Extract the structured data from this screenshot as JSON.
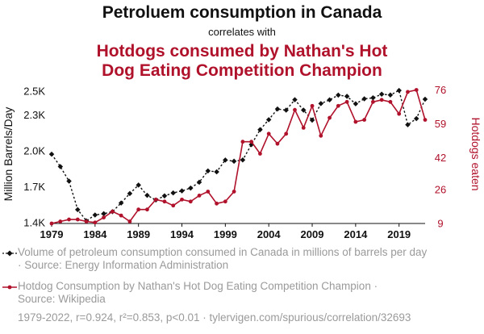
{
  "title": "Petroluem consumption in Canada",
  "subtitle": "correlates with",
  "title2_line1": "Hotdogs consumed by Nathan's Hot",
  "title2_line2": "Dog Eating Competition Champion",
  "legend": {
    "series1_line1": "Volume of petroleum consumption consumed in Canada in millions of barrels per day",
    "series1_line2": "· Source: Energy Information Administration",
    "series2_line1": "Hotdog Consumption by Nathan's Hot Dog Eating Competition Champion ·",
    "series2_line2": "Source: Wikipedia"
  },
  "footer": "1979-2022, r=0.924, r²=0.853, p<0.01 · tylervigen.com/spurious/correlation/32693",
  "colors": {
    "petroleum": "#111111",
    "hotdogs": "#b0112b"
  },
  "chart_data": {
    "type": "line",
    "x_label": "",
    "y_label_left": "Million Barrels/Day",
    "y_label_right": "Hotdogs eaten",
    "x": [
      1979,
      1980,
      1981,
      1982,
      1983,
      1984,
      1985,
      1986,
      1987,
      1988,
      1989,
      1990,
      1991,
      1992,
      1993,
      1994,
      1995,
      1996,
      1997,
      1998,
      1999,
      2000,
      2001,
      2002,
      2003,
      2004,
      2005,
      2006,
      2007,
      2008,
      2009,
      2010,
      2011,
      2012,
      2013,
      2014,
      2015,
      2016,
      2017,
      2018,
      2019,
      2020,
      2021,
      2022
    ],
    "x_ticks": [
      1979,
      1984,
      1989,
      1994,
      1999,
      2004,
      2009,
      2014,
      2019
    ],
    "left_ticks": [
      {
        "v": 1.4,
        "label": "1.4K"
      },
      {
        "v": 1.7,
        "label": "1.7K"
      },
      {
        "v": 2.0,
        "label": "2.0K"
      },
      {
        "v": 2.3,
        "label": "2.3K"
      },
      {
        "v": 2.5,
        "label": "2.5K"
      }
    ],
    "right_ticks": [
      {
        "v": 9,
        "label": "9"
      },
      {
        "v": 26,
        "label": "26"
      },
      {
        "v": 42,
        "label": "42"
      },
      {
        "v": 59,
        "label": "59"
      },
      {
        "v": 76,
        "label": "76"
      }
    ],
    "left_range": [
      1.392,
      2.528
    ],
    "right_range": [
      9,
      77
    ],
    "series": [
      {
        "name": "Volume of petroleum consumption consumed in Canada in millions of barrels per day",
        "axis": "left",
        "style": "dashed",
        "values": [
          1.973,
          1.869,
          1.747,
          1.508,
          1.414,
          1.463,
          1.474,
          1.491,
          1.564,
          1.643,
          1.714,
          1.628,
          1.589,
          1.623,
          1.648,
          1.665,
          1.689,
          1.738,
          1.832,
          1.825,
          1.924,
          1.914,
          1.924,
          2.053,
          2.178,
          2.262,
          2.351,
          2.342,
          2.429,
          2.342,
          2.258,
          2.397,
          2.428,
          2.468,
          2.458,
          2.395,
          2.437,
          2.445,
          2.475,
          2.469,
          2.507,
          2.219,
          2.271,
          2.433
        ]
      },
      {
        "name": "Hotdog Consumption by Nathan's Hot Dog Eating Competition Champion",
        "axis": "right",
        "style": "solid",
        "values": [
          9,
          10,
          11,
          11,
          10,
          9.5,
          12,
          15,
          13,
          10,
          16,
          16,
          21,
          20,
          18,
          21,
          20,
          23,
          25,
          19,
          20,
          25,
          50,
          50,
          44,
          54,
          49,
          54,
          66,
          57,
          68,
          53,
          62,
          68,
          70,
          60,
          61,
          70,
          71,
          70,
          64,
          75,
          76,
          61
        ]
      }
    ]
  }
}
